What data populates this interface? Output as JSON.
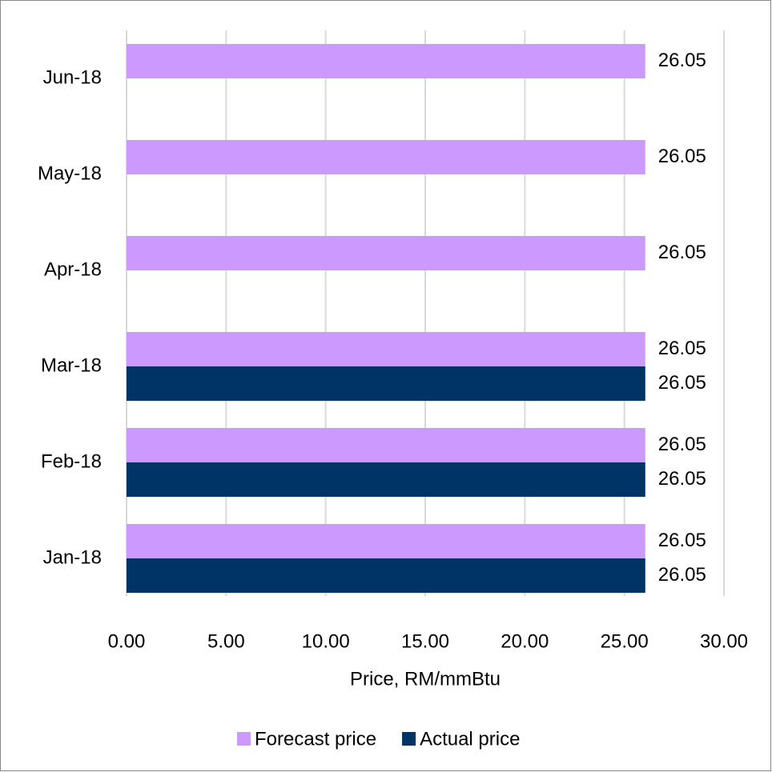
{
  "chart_data": {
    "type": "bar",
    "orientation": "horizontal",
    "x_label": "Price, RM/mmBtu",
    "categories": [
      "Jan-18",
      "Feb-18",
      "Mar-18",
      "Apr-18",
      "May-18",
      "Jun-18"
    ],
    "series": [
      {
        "name": "Forecast price",
        "color": "#cc99ff",
        "label_color": "#c55a11",
        "values": [
          26.05,
          26.05,
          26.05,
          26.05,
          26.05,
          26.05
        ]
      },
      {
        "name": "Actual price",
        "color": "#003366",
        "label_color": "#44546a",
        "values": [
          26.05,
          26.05,
          26.05,
          null,
          null,
          null
        ]
      }
    ],
    "xlim": [
      0,
      30
    ],
    "xticks": [
      {
        "value": 0,
        "label": "0.00"
      },
      {
        "value": 5,
        "label": "5.00"
      },
      {
        "value": 10,
        "label": "10.00"
      },
      {
        "value": 15,
        "label": "15.00"
      },
      {
        "value": 20,
        "label": "20.00"
      },
      {
        "value": 25,
        "label": "25.00"
      },
      {
        "value": 30,
        "label": "30.00"
      }
    ],
    "grid": true,
    "legend": "bottom"
  }
}
